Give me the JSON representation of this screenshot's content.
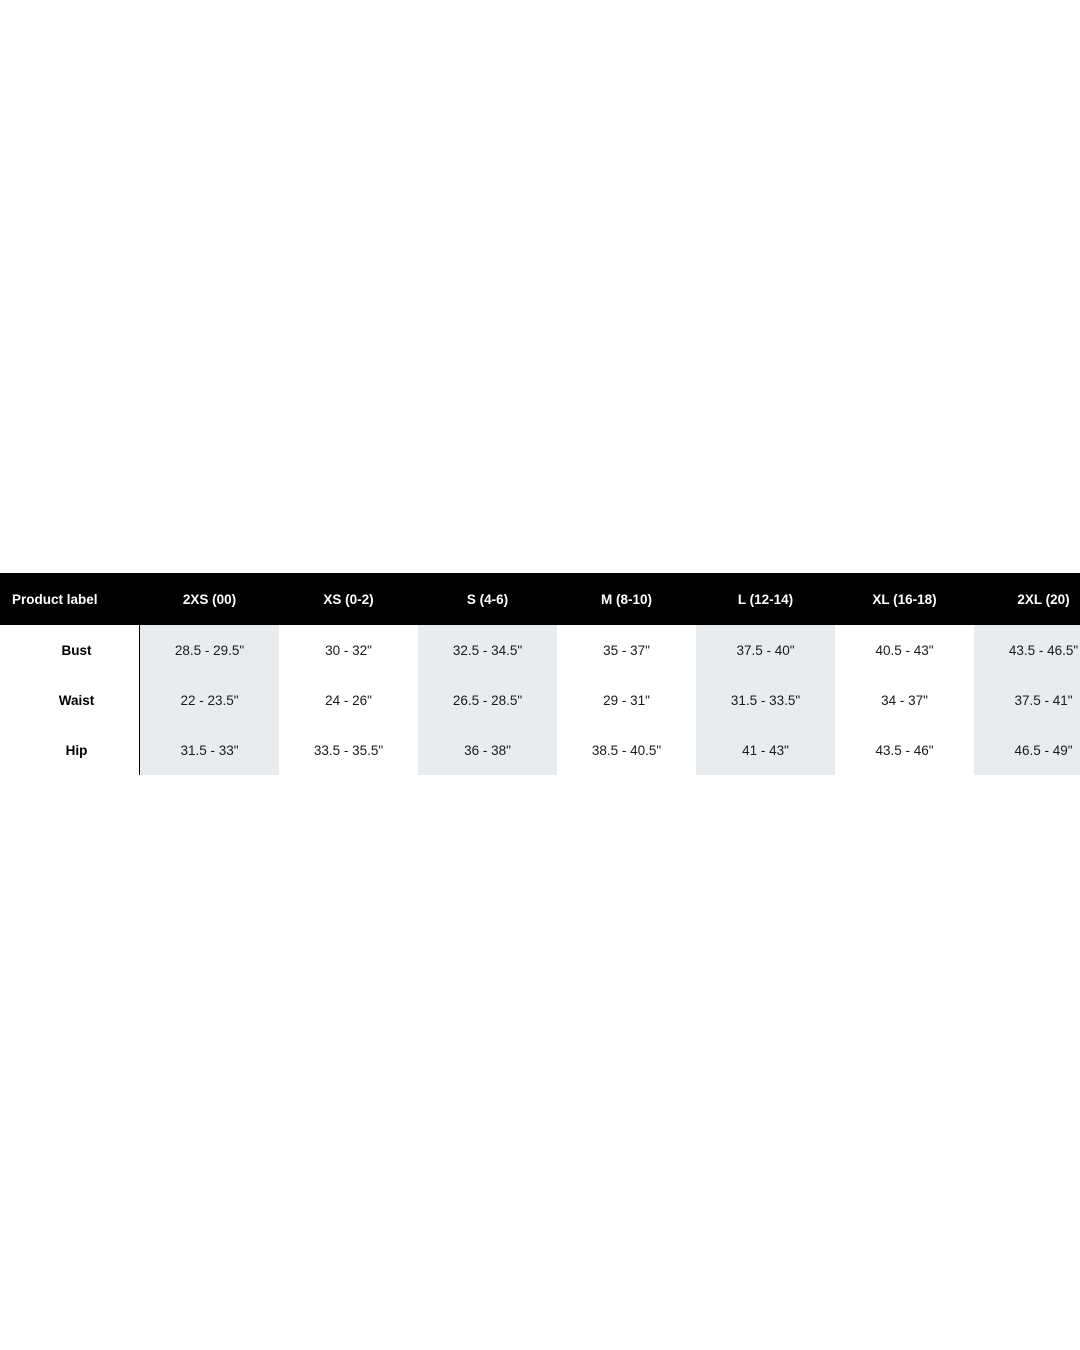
{
  "size_chart": {
    "header_label": "Product label",
    "sizes": [
      "2XS (00)",
      "XS (0-2)",
      "S (4-6)",
      "M (8-10)",
      "L (12-14)",
      "XL (16-18)",
      "2XL (20)"
    ],
    "rows": [
      {
        "label": "Bust",
        "values": [
          "28.5 - 29.5\"",
          "30 - 32\"",
          "32.5 - 34.5\"",
          "35 - 37\"",
          "37.5 - 40\"",
          "40.5 - 43\"",
          "43.5 - 46.5\""
        ]
      },
      {
        "label": "Waist",
        "values": [
          "22 - 23.5\"",
          "24 - 26\"",
          "26.5 - 28.5\"",
          "29 - 31\"",
          "31.5 - 33.5\"",
          "34 - 37\"",
          "37.5 - 41\""
        ]
      },
      {
        "label": "Hip",
        "values": [
          "31.5 - 33\"",
          "33.5 - 35.5\"",
          "36 - 38\"",
          "38.5 - 40.5\"",
          "41 - 43\"",
          "43.5 - 46\"",
          "46.5 - 49\""
        ]
      }
    ],
    "colors": {
      "header_bg": "#000000",
      "header_text": "#ffffff",
      "shaded_column": "#e9ecef"
    }
  }
}
